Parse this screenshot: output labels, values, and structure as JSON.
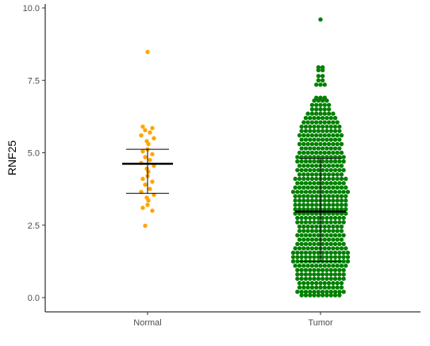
{
  "chart_data": {
    "type": "scatter",
    "subtype": "dot-strip plot with mean ± SD bars",
    "title": "",
    "xlabel": "",
    "ylabel": "RNF25",
    "ylim": [
      0,
      10
    ],
    "y_ticks": [
      0.0,
      2.5,
      5.0,
      7.5,
      10.0
    ],
    "y_tick_labels": [
      "0.0",
      "2.5",
      "5.0",
      "7.5",
      "10.0"
    ],
    "categories": [
      "Normal",
      "Tumor"
    ],
    "grid": false,
    "legend": "none",
    "series": [
      {
        "category": "Normal",
        "color": "#FFA500",
        "mean": 4.62,
        "sd_lower": 3.6,
        "sd_upper": 5.12,
        "values": [
          8.48,
          5.9,
          5.85,
          5.78,
          5.7,
          5.6,
          5.5,
          5.4,
          5.3,
          5.12,
          5.05,
          4.95,
          4.85,
          4.75,
          4.65,
          4.55,
          4.45,
          4.35,
          4.2,
          4.1,
          4.0,
          3.9,
          3.75,
          3.65,
          3.55,
          3.45,
          3.35,
          3.2,
          3.1,
          3.0,
          2.48
        ]
      },
      {
        "category": "Tumor",
        "color": "#008000",
        "mean": 2.97,
        "sd_lower": 1.25,
        "sd_upper": 4.8,
        "values": [
          9.6,
          7.95,
          7.85,
          7.65,
          7.5,
          7.35,
          6.9,
          6.8,
          6.65,
          6.5,
          6.35,
          6.2,
          6.05,
          5.9,
          5.75,
          5.6,
          5.45,
          5.3,
          5.15,
          5.0,
          4.85,
          4.7,
          4.55,
          4.4,
          4.25,
          4.1,
          3.95,
          3.8,
          3.65,
          3.5,
          3.35,
          3.2,
          3.05,
          2.9,
          2.75,
          2.6,
          2.45,
          2.3,
          2.15,
          2.0,
          1.85,
          1.7,
          1.55,
          1.4,
          1.25,
          1.1,
          0.95,
          0.8,
          0.65,
          0.5,
          0.35,
          0.2,
          0.08
        ],
        "dots_per_row": [
          1,
          2,
          2,
          2,
          2,
          3,
          3,
          4,
          5,
          5,
          7,
          8,
          9,
          10,
          10,
          11,
          10,
          11,
          10,
          11,
          12,
          12,
          11,
          12,
          11,
          13,
          12,
          13,
          14,
          13,
          13,
          13,
          13,
          13,
          12,
          12,
          11,
          11,
          12,
          11,
          12,
          13,
          14,
          14,
          14,
          13,
          12,
          12,
          12,
          11,
          11,
          12,
          10
        ]
      }
    ]
  }
}
